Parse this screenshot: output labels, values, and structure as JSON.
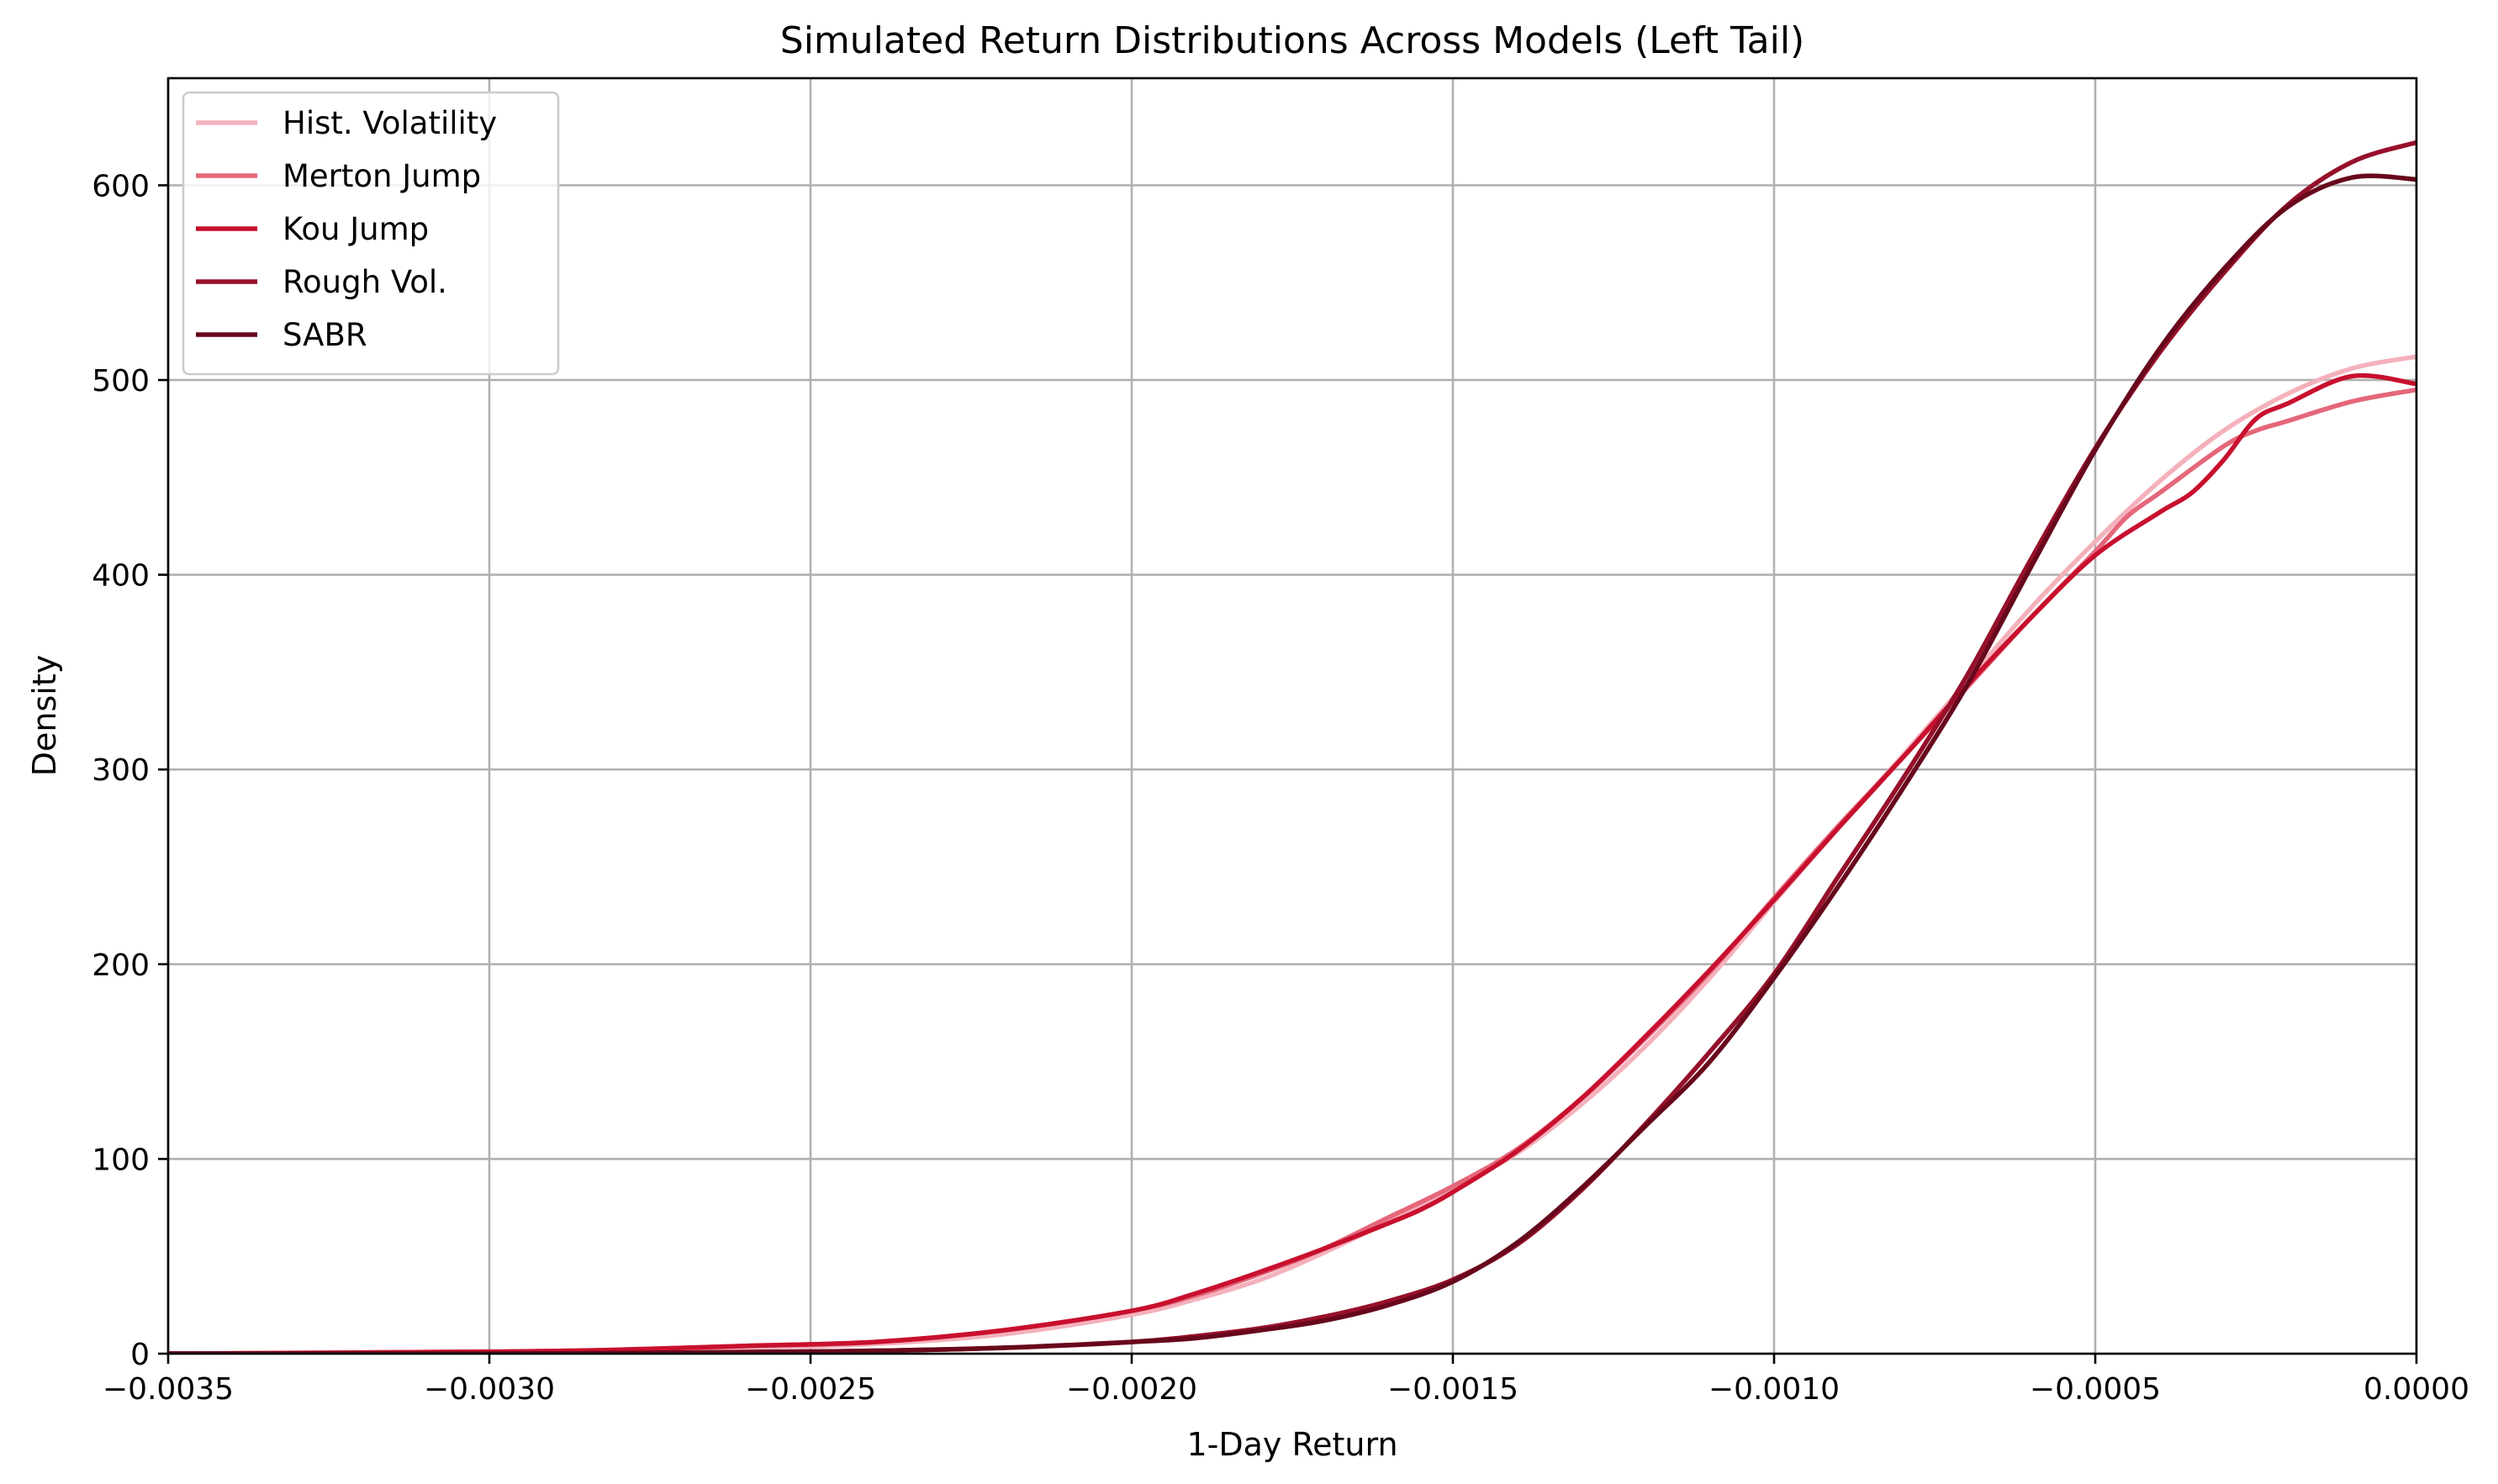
{
  "chart_data": {
    "type": "line",
    "title": "Simulated Return Distributions Across Models (Left Tail)",
    "xlabel": "1-Day Return",
    "ylabel": "Density",
    "xlim": [
      -0.0035,
      0.0
    ],
    "ylim": [
      0,
      655
    ],
    "grid": true,
    "legend_position": "upper-left",
    "x_ticks": [
      -0.0035,
      -0.003,
      -0.0025,
      -0.002,
      -0.0015,
      -0.001,
      -0.0005,
      0.0
    ],
    "x_tick_labels": [
      "−0.0035",
      "−0.0030",
      "−0.0025",
      "−0.0020",
      "−0.0015",
      "−0.0010",
      "−0.0005",
      "0.0000"
    ],
    "y_ticks": [
      0,
      100,
      200,
      300,
      400,
      500,
      600
    ],
    "y_tick_labels": [
      "0",
      "100",
      "200",
      "300",
      "400",
      "500",
      "600"
    ],
    "series": [
      {
        "name": "Hist. Volatility",
        "color": "#f4b1bc",
        "x": [
          -0.0035,
          -0.003,
          -0.0028,
          -0.0026,
          -0.0024,
          -0.0022,
          -0.002,
          -0.0019,
          -0.0018,
          -0.0017,
          -0.0016,
          -0.0015,
          -0.0014,
          -0.0013,
          -0.0012,
          -0.0011,
          -0.001,
          -0.0009,
          -0.0008,
          -0.0007,
          -0.0006,
          -0.0005,
          -0.0004,
          -0.0003,
          -0.0002,
          -0.0001,
          0.0
        ],
        "y": [
          0,
          0.5,
          1.5,
          3,
          5,
          10,
          20,
          28,
          38,
          52,
          68,
          85,
          103,
          128,
          158,
          193,
          232,
          270,
          307,
          345,
          383,
          417,
          448,
          474,
          493,
          506,
          512
        ]
      },
      {
        "name": "Merton Jump",
        "color": "#e5677a",
        "x": [
          -0.0035,
          -0.003,
          -0.0028,
          -0.0026,
          -0.0024,
          -0.0022,
          -0.002,
          -0.0019,
          -0.0018,
          -0.0017,
          -0.0016,
          -0.0015,
          -0.0014,
          -0.0013,
          -0.0012,
          -0.0011,
          -0.001,
          -0.0009,
          -0.0008,
          -0.0007,
          -0.0006,
          -0.0005,
          -0.00045,
          -0.0004,
          -0.0003,
          -0.00025,
          -0.0002,
          -0.0001,
          0.0
        ],
        "y": [
          0,
          1,
          2,
          4,
          6,
          12,
          22,
          30,
          41,
          54,
          70,
          86,
          105,
          131,
          162,
          196,
          234,
          271,
          306,
          342,
          378,
          412,
          430,
          442,
          466,
          474,
          479,
          489,
          495
        ]
      },
      {
        "name": "Kou Jump",
        "color": "#c8102e",
        "x": [
          -0.0035,
          -0.003,
          -0.0028,
          -0.0026,
          -0.0024,
          -0.0022,
          -0.002,
          -0.0019,
          -0.0018,
          -0.0017,
          -0.0016,
          -0.00155,
          -0.0015,
          -0.0014,
          -0.0013,
          -0.0012,
          -0.0011,
          -0.001,
          -0.0009,
          -0.0008,
          -0.0007,
          -0.0006,
          -0.0005,
          -0.0004,
          -0.00035,
          -0.0003,
          -0.00025,
          -0.0002,
          -0.0001,
          0.0
        ],
        "y": [
          0,
          1,
          2,
          4,
          6,
          12,
          22,
          31,
          42,
          54,
          67,
          74,
          83,
          104,
          131,
          163,
          197,
          233,
          270,
          306,
          343,
          378,
          410,
          432,
          442,
          459,
          480,
          488,
          502,
          498
        ]
      },
      {
        "name": "Rough Vol.",
        "color": "#96102a",
        "x": [
          -0.0035,
          -0.003,
          -0.0028,
          -0.0026,
          -0.0024,
          -0.0022,
          -0.002,
          -0.0019,
          -0.0018,
          -0.0017,
          -0.0016,
          -0.0015,
          -0.0014,
          -0.0013,
          -0.0012,
          -0.0011,
          -0.001,
          -0.0009,
          -0.0008,
          -0.0007,
          -0.0006,
          -0.0005,
          -0.0004,
          -0.0003,
          -0.0002,
          -0.0001,
          0.0
        ],
        "y": [
          0,
          0,
          0.3,
          0.8,
          1.5,
          3,
          6,
          9,
          13,
          19,
          27,
          38,
          56,
          84,
          118,
          155,
          195,
          245,
          295,
          348,
          408,
          465,
          514,
          555,
          590,
          612,
          622
        ]
      },
      {
        "name": "SABR",
        "color": "#67081c",
        "x": [
          -0.0035,
          -0.003,
          -0.0028,
          -0.0026,
          -0.0024,
          -0.0022,
          -0.002,
          -0.0019,
          -0.0018,
          -0.0017,
          -0.0016,
          -0.0015,
          -0.0014,
          -0.0013,
          -0.0012,
          -0.0011,
          -0.001,
          -0.0009,
          -0.0008,
          -0.0007,
          -0.0006,
          -0.0005,
          -0.0004,
          -0.0003,
          -0.0002,
          -0.0001,
          0.0
        ],
        "y": [
          0,
          0,
          0.3,
          0.8,
          1.5,
          3,
          6,
          8,
          12,
          17,
          25,
          37,
          57,
          85,
          117,
          150,
          193,
          240,
          290,
          343,
          404,
          464,
          516,
          557,
          589,
          604,
          603
        ]
      }
    ]
  }
}
